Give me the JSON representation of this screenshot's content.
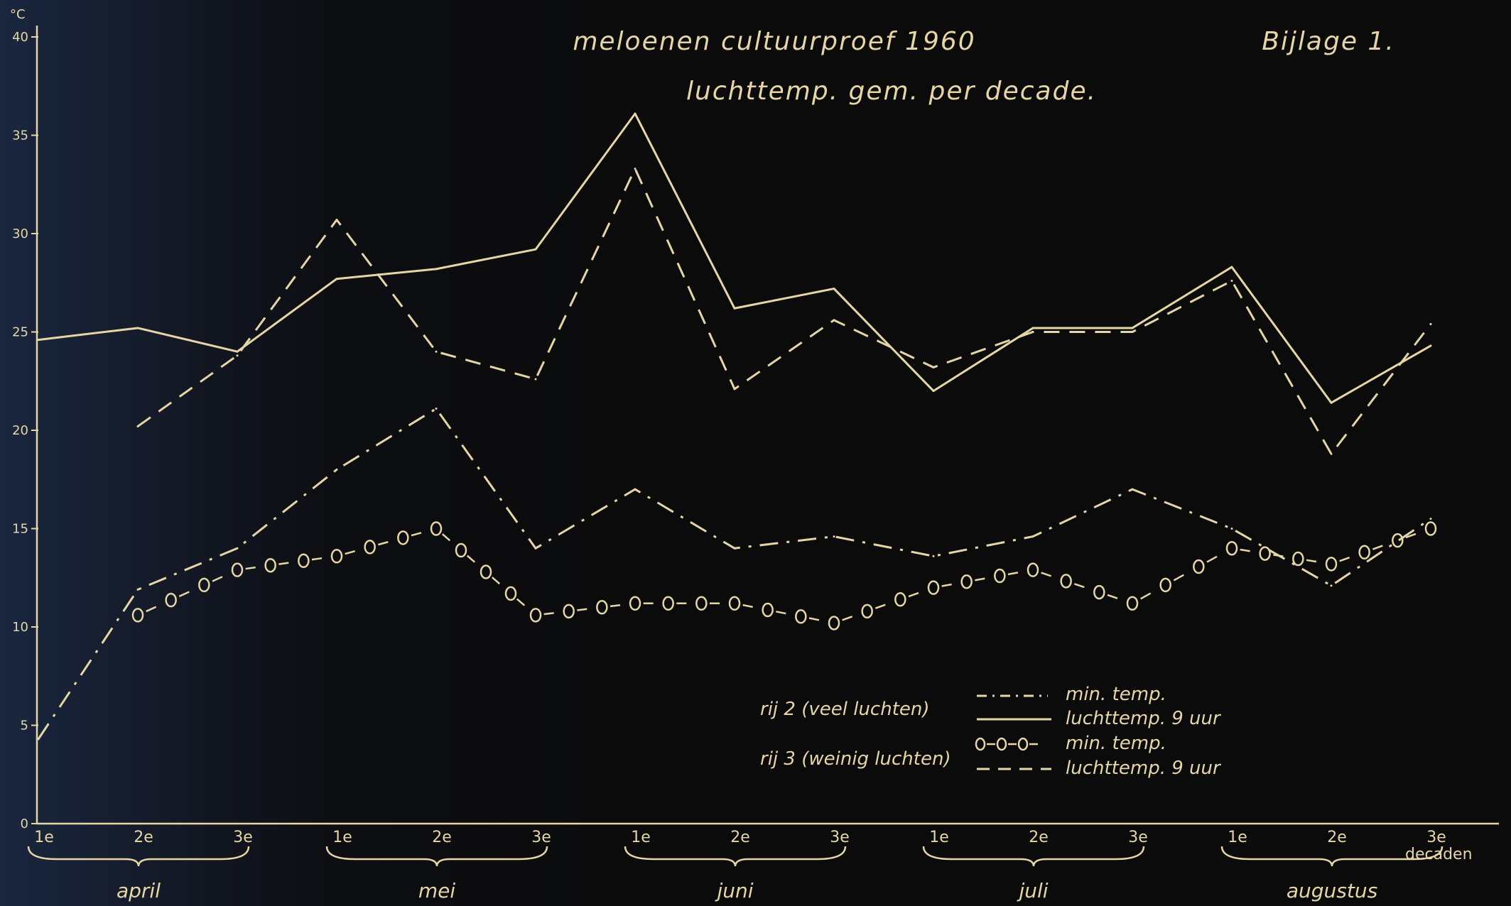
{
  "chart_data": {
    "type": "line",
    "title": "meloenen cultuurproef 1960",
    "subtitle": "luchttemp. gem. per decade.",
    "corner_label": "Bijlage 1.",
    "ylabel": "°C",
    "xlabel": "decaden",
    "ylim": [
      0,
      40
    ],
    "yticks": [
      {
        "value": 0,
        "label": "0"
      },
      {
        "value": 5,
        "label": "5"
      },
      {
        "value": 10,
        "label": "10"
      },
      {
        "value": 15,
        "label": "15"
      },
      {
        "value": 20,
        "label": "20"
      },
      {
        "value": 25,
        "label": "25"
      },
      {
        "value": 30,
        "label": "30"
      },
      {
        "value": 35,
        "label": "35"
      },
      {
        "value": 40,
        "label": "40"
      }
    ],
    "categories": [
      "1e",
      "2e",
      "3e",
      "1e",
      "2e",
      "3e",
      "1e",
      "2e",
      "3e",
      "1e",
      "2e",
      "3e",
      "1e",
      "2e",
      "3e"
    ],
    "months": [
      "april",
      "mei",
      "juni",
      "juli",
      "augustus"
    ],
    "legend": {
      "group1_label": "rij 2 (veel luchten)",
      "group2_label": "rij 3 (weinig luchten)",
      "min_label": "min. temp.",
      "air_label": "luchttemp. 9 uur",
      "style_min2": "-·-·-·",
      "style_air2": "———",
      "style_min3": "o-o-o-",
      "style_air3": "– – – –"
    },
    "series": [
      {
        "key": "r2_air",
        "style": "solid",
        "values": [
          24.6,
          25.2,
          24.0,
          27.7,
          28.2,
          29.2,
          36.1,
          26.2,
          27.2,
          22.0,
          25.2,
          25.2,
          28.3,
          21.4,
          24.3
        ]
      },
      {
        "key": "r3_air",
        "style": "dashed",
        "values": [
          null,
          20.2,
          23.8,
          30.7,
          24.0,
          22.6,
          33.3,
          22.1,
          25.6,
          23.2,
          25.0,
          25.0,
          27.6,
          18.8,
          25.4
        ]
      },
      {
        "key": "r2_min",
        "style": "dashdot",
        "values": [
          4.3,
          11.9,
          14.0,
          18.0,
          21.1,
          14.0,
          17.0,
          14.0,
          14.6,
          13.6,
          14.6,
          17.0,
          15.0,
          12.1,
          15.5
        ]
      },
      {
        "key": "r3_min",
        "style": "circles",
        "values": [
          null,
          10.6,
          12.9,
          13.6,
          15.0,
          10.6,
          11.2,
          11.2,
          10.2,
          12.0,
          12.9,
          11.2,
          14.0,
          13.2,
          15.0
        ]
      }
    ],
    "grid": false,
    "legend_position": "bottom-right"
  },
  "colors": {
    "ink": "#e6d6a6",
    "background": "#0b0b0c"
  }
}
